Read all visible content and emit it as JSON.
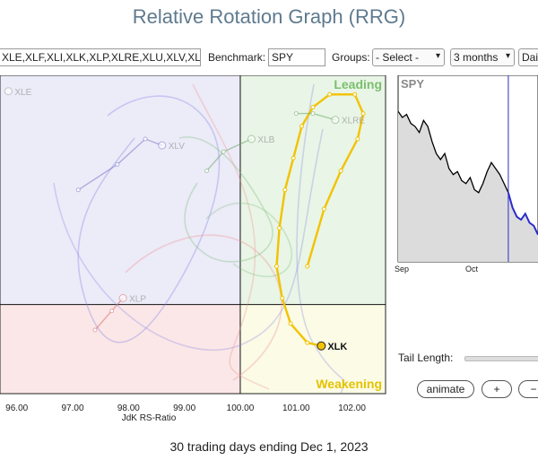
{
  "page": {
    "title": "Relative Rotation Graph (RRG)",
    "footer": "30 trading days ending Dec 1, 2023"
  },
  "toolbar": {
    "symbols_value": "XLE,XLF,XLI,XLK,XLP,XLRE,XLU,XLV,XLY",
    "benchmark_label": "Benchmark:",
    "benchmark_value": "SPY",
    "groups_label": "Groups:",
    "groups_value": "- Select -",
    "period_value": "3 months",
    "frequency_value": "Dai"
  },
  "controls": {
    "tail_length_label": "Tail Length:",
    "animate_label": "animate",
    "plus_label": "+",
    "minus_label": "−"
  },
  "colors": {
    "leading": "#e9f5e6",
    "weakening": "#fbfbe6",
    "lagging": "#fbe7e7",
    "improving": "#ecebf8",
    "highlight": "#f2c200",
    "spy_line": "#000000",
    "spy_highlight": "#2b2bcc"
  },
  "chart_data": [
    {
      "type": "scatter",
      "title": "",
      "xlabel": "JdK RS-Ratio",
      "ylabel": "",
      "xlim": [
        95.7,
        102.6
      ],
      "ylim": [
        98.6,
        103.6
      ],
      "x_ticks": [
        "96.00",
        "97.00",
        "98.00",
        "99.00",
        "100.00",
        "101.00",
        "102.00"
      ],
      "center": [
        100,
        100
      ],
      "quadrants": {
        "top_right": "Leading",
        "bottom_right": "Weakening",
        "bottom_left": "Lagging",
        "top_left": "Improving"
      },
      "series": [
        {
          "name": "XLK",
          "highlighted": true,
          "points": [
            [
              101.2,
              100.6
            ],
            [
              101.5,
              101.5
            ],
            [
              101.8,
              102.1
            ],
            [
              102.1,
              102.6
            ],
            [
              102.2,
              103.0
            ],
            [
              102.05,
              103.3
            ],
            [
              101.6,
              103.3
            ],
            [
              101.3,
              103.1
            ],
            [
              101.1,
              102.8
            ],
            [
              100.95,
              102.3
            ],
            [
              100.8,
              101.8
            ],
            [
              100.7,
              101.2
            ],
            [
              100.65,
              100.6
            ],
            [
              100.75,
              100.1
            ],
            [
              100.9,
              99.7
            ],
            [
              101.2,
              99.4
            ],
            [
              101.45,
              99.35
            ]
          ]
        },
        {
          "name": "XLV",
          "points": [
            [
              97.1,
              101.8
            ],
            [
              97.8,
              102.2
            ],
            [
              98.3,
              102.6
            ],
            [
              98.6,
              102.5
            ]
          ]
        },
        {
          "name": "XLRE",
          "points": [
            [
              101.0,
              103.0
            ],
            [
              101.3,
              103.0
            ],
            [
              101.7,
              102.9
            ]
          ]
        },
        {
          "name": "XLB",
          "points": [
            [
              99.4,
              102.1
            ],
            [
              99.7,
              102.4
            ],
            [
              100.2,
              102.6
            ]
          ]
        },
        {
          "name": "XLP",
          "points": [
            [
              97.4,
              99.6
            ],
            [
              97.7,
              99.9
            ],
            [
              97.9,
              100.1
            ]
          ]
        },
        {
          "name": "XLE",
          "points": [
            [
              95.85,
              103.35
            ]
          ]
        }
      ]
    },
    {
      "type": "line",
      "title": "SPY",
      "x_ticks": [
        "Sep",
        "Oct"
      ],
      "series": [
        {
          "name": "SPY",
          "values": [
            460,
            458,
            459,
            456,
            455,
            453,
            457,
            455,
            450,
            446,
            444,
            446,
            441,
            439,
            440,
            437,
            436,
            438,
            434,
            433,
            436,
            440,
            443,
            441,
            439,
            436,
            433,
            428,
            425,
            424,
            426,
            423,
            422,
            419
          ]
        }
      ],
      "highlight_from_index": 26,
      "ylim": [
        410,
        472
      ]
    }
  ]
}
